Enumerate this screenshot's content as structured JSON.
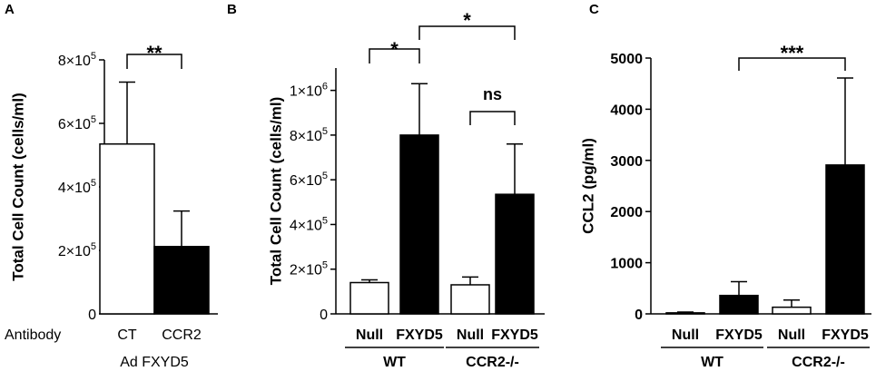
{
  "chart_data": [
    {
      "panel": "A",
      "type": "bar",
      "ylabel": "Total Cell Count (cells/ml)",
      "ylim": [
        0,
        800000
      ],
      "yticks": [
        {
          "value": 0,
          "label": "0"
        },
        {
          "value": 200000,
          "label": "2×10^5"
        },
        {
          "value": 400000,
          "label": "4×10^5"
        },
        {
          "value": 600000,
          "label": "6×10^5"
        },
        {
          "value": 800000,
          "label": "8×10^5"
        }
      ],
      "row_label": "Antibody",
      "categories": [
        "CT",
        "CCR2"
      ],
      "values": [
        535000,
        212000
      ],
      "errors": [
        195000,
        112000
      ],
      "fills": [
        "#ffffff",
        "#000000"
      ],
      "group_labels": [
        {
          "text": "Ad FXYD5",
          "categories": [
            0,
            1
          ]
        }
      ],
      "significance": [
        {
          "from": 0,
          "to": 1,
          "text": "**"
        }
      ]
    },
    {
      "panel": "B",
      "type": "bar",
      "ylabel": "Total Cell Count (cells/ml)",
      "ylim": [
        0,
        1100000
      ],
      "yticks": [
        {
          "value": 0,
          "label": "0"
        },
        {
          "value": 200000,
          "label": "2×10^5"
        },
        {
          "value": 400000,
          "label": "4×10^5"
        },
        {
          "value": 600000,
          "label": "6×10^5"
        },
        {
          "value": 800000,
          "label": "8×10^5"
        },
        {
          "value": 1000000,
          "label": "1×10^6"
        }
      ],
      "categories": [
        "Null",
        "FXYD5",
        "Null",
        "FXYD5"
      ],
      "values": [
        140000,
        800000,
        130000,
        535000
      ],
      "errors": [
        12000,
        230000,
        35000,
        225000
      ],
      "fills": [
        "#ffffff",
        "#000000",
        "#ffffff",
        "#000000"
      ],
      "group_labels": [
        {
          "text": "WT",
          "categories": [
            0,
            1
          ]
        },
        {
          "text": "CCR2-/-",
          "categories": [
            2,
            3
          ]
        }
      ],
      "significance": [
        {
          "from": 0,
          "to": 1,
          "text": "*"
        },
        {
          "from": 1,
          "to": 3,
          "text": "*"
        },
        {
          "from": 2,
          "to": 3,
          "text": "ns"
        }
      ]
    },
    {
      "panel": "C",
      "type": "bar",
      "ylabel": "CCL2 (pg/ml)",
      "ylim": [
        0,
        5000
      ],
      "yticks": [
        {
          "value": 0,
          "label": "0"
        },
        {
          "value": 1000,
          "label": "1000"
        },
        {
          "value": 2000,
          "label": "2000"
        },
        {
          "value": 3000,
          "label": "3000"
        },
        {
          "value": 4000,
          "label": "4000"
        },
        {
          "value": 5000,
          "label": "5000"
        }
      ],
      "categories": [
        "Null",
        "FXYD5",
        "Null",
        "FXYD5"
      ],
      "values": [
        20,
        360,
        130,
        2910
      ],
      "errors": [
        15,
        270,
        140,
        1700
      ],
      "fills": [
        "#ffffff",
        "#000000",
        "#ffffff",
        "#000000"
      ],
      "group_labels": [
        {
          "text": "WT",
          "categories": [
            0,
            1
          ]
        },
        {
          "text": "CCR2-/-",
          "categories": [
            2,
            3
          ]
        }
      ],
      "significance": [
        {
          "from": 1,
          "to": 3,
          "text": "***"
        }
      ]
    }
  ]
}
